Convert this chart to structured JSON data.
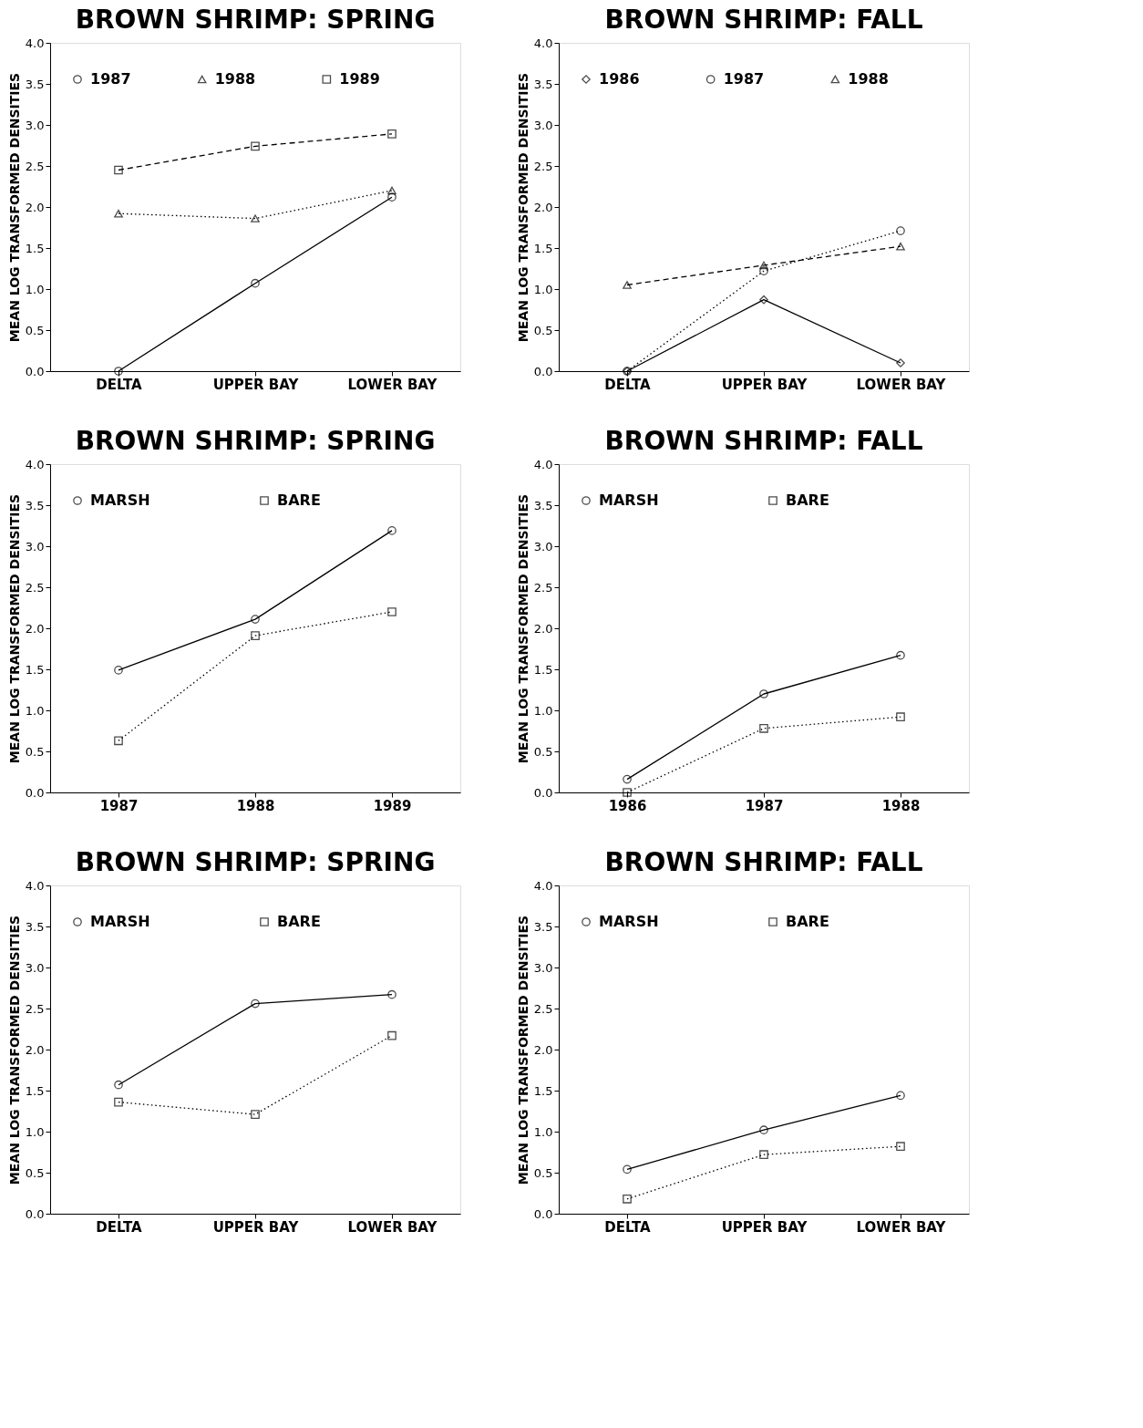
{
  "chart_data": [
    {
      "type": "line",
      "title": "BROWN SHRIMP:   SPRING",
      "ylabel": "MEAN LOG TRANSFORMED DENSITIES",
      "categories": [
        "DELTA",
        "UPPER BAY",
        "LOWER BAY"
      ],
      "ylim": [
        0,
        4
      ],
      "yticks": [
        {
          "value": 0,
          "label": "0.0"
        },
        {
          "value": 0.5,
          "label": "0.5"
        },
        {
          "value": 1,
          "label": "1.0"
        },
        {
          "value": 1.5,
          "label": "1.5"
        },
        {
          "value": 2,
          "label": "2.0"
        },
        {
          "value": 2.5,
          "label": "2.5"
        },
        {
          "value": 3,
          "label": "3.0"
        },
        {
          "value": 3.5,
          "label": "3.5"
        },
        {
          "value": 4,
          "label": "4.0"
        }
      ],
      "grid": false,
      "legend": "top left",
      "series": [
        {
          "name": "1987",
          "color": "#000000",
          "marker": "circle",
          "line_style": "solid",
          "values": [
            0.0,
            1.07,
            2.12
          ]
        },
        {
          "name": "1988",
          "color": "#000000",
          "marker": "triangle",
          "line_style": "dotted",
          "values": [
            1.92,
            1.86,
            2.2
          ]
        },
        {
          "name": "1989",
          "color": "#000000",
          "marker": "square",
          "line_style": "dashed",
          "values": [
            2.45,
            2.74,
            2.89
          ]
        }
      ]
    },
    {
      "type": "line",
      "title": "BROWN SHRIMP:   FALL",
      "ylabel": "MEAN LOG TRANSFORMED DENSITIES",
      "categories": [
        "DELTA",
        "UPPER BAY",
        "LOWER BAY"
      ],
      "ylim": [
        0,
        4
      ],
      "yticks": [
        {
          "value": 0,
          "label": "0.0"
        },
        {
          "value": 0.5,
          "label": "0.5"
        },
        {
          "value": 1,
          "label": "1.0"
        },
        {
          "value": 1.5,
          "label": "1.5"
        },
        {
          "value": 2,
          "label": "2.0"
        },
        {
          "value": 2.5,
          "label": "2.5"
        },
        {
          "value": 3,
          "label": "3.0"
        },
        {
          "value": 3.5,
          "label": "3.5"
        },
        {
          "value": 4,
          "label": "4.0"
        }
      ],
      "grid": false,
      "legend": "top left",
      "series": [
        {
          "name": "1986",
          "color": "#000000",
          "marker": "diamond",
          "line_style": "solid",
          "values": [
            0.0,
            0.87,
            0.1
          ]
        },
        {
          "name": "1987",
          "color": "#000000",
          "marker": "circle",
          "line_style": "dotted",
          "values": [
            0.0,
            1.22,
            1.71
          ]
        },
        {
          "name": "1988",
          "color": "#000000",
          "marker": "triangle",
          "line_style": "dashed",
          "values": [
            1.05,
            1.29,
            1.52
          ]
        }
      ]
    },
    {
      "type": "line",
      "title": "BROWN SHRIMP:   SPRING",
      "ylabel": "MEAN LOG TRANSFORMED DENSITIES",
      "categories": [
        "1987",
        "1988",
        "1989"
      ],
      "ylim": [
        0,
        4
      ],
      "yticks": [
        {
          "value": 0,
          "label": "0.0"
        },
        {
          "value": 0.5,
          "label": "0.5"
        },
        {
          "value": 1,
          "label": "1.0"
        },
        {
          "value": 1.5,
          "label": "1.5"
        },
        {
          "value": 2,
          "label": "2.0"
        },
        {
          "value": 2.5,
          "label": "2.5"
        },
        {
          "value": 3,
          "label": "3.0"
        },
        {
          "value": 3.5,
          "label": "3.5"
        },
        {
          "value": 4,
          "label": "4.0"
        }
      ],
      "grid": false,
      "legend": "top left",
      "series": [
        {
          "name": "MARSH",
          "color": "#000000",
          "marker": "circle",
          "line_style": "solid",
          "values": [
            1.49,
            2.11,
            3.19
          ]
        },
        {
          "name": "BARE",
          "color": "#000000",
          "marker": "square",
          "line_style": "dotted",
          "values": [
            0.63,
            1.91,
            2.2
          ]
        }
      ]
    },
    {
      "type": "line",
      "title": "BROWN SHRIMP:   FALL",
      "ylabel": "MEAN LOG TRANSFORMED DENSITIES",
      "categories": [
        "1986",
        "1987",
        "1988"
      ],
      "ylim": [
        0,
        4
      ],
      "yticks": [
        {
          "value": 0,
          "label": "0.0"
        },
        {
          "value": 0.5,
          "label": "0.5"
        },
        {
          "value": 1,
          "label": "1.0"
        },
        {
          "value": 1.5,
          "label": "1.5"
        },
        {
          "value": 2,
          "label": "2.0"
        },
        {
          "value": 2.5,
          "label": "2.5"
        },
        {
          "value": 3,
          "label": "3.0"
        },
        {
          "value": 3.5,
          "label": "3.5"
        },
        {
          "value": 4,
          "label": "4.0"
        }
      ],
      "grid": false,
      "legend": "top left",
      "series": [
        {
          "name": "MARSH",
          "color": "#000000",
          "marker": "circle",
          "line_style": "solid",
          "values": [
            0.16,
            1.2,
            1.67
          ]
        },
        {
          "name": "BARE",
          "color": "#000000",
          "marker": "square",
          "line_style": "dotted",
          "values": [
            0.0,
            0.78,
            0.92
          ]
        }
      ]
    },
    {
      "type": "line",
      "title": "BROWN SHRIMP:   SPRING",
      "ylabel": "MEAN LOG TRANSFORMED DENSITIES",
      "categories": [
        "DELTA",
        "UPPER BAY",
        "LOWER BAY"
      ],
      "ylim": [
        0,
        4
      ],
      "yticks": [
        {
          "value": 0,
          "label": "0.0"
        },
        {
          "value": 0.5,
          "label": "0.5"
        },
        {
          "value": 1,
          "label": "1.0"
        },
        {
          "value": 1.5,
          "label": "1.5"
        },
        {
          "value": 2,
          "label": "2.0"
        },
        {
          "value": 2.5,
          "label": "2.5"
        },
        {
          "value": 3,
          "label": "3.0"
        },
        {
          "value": 3.5,
          "label": "3.5"
        },
        {
          "value": 4,
          "label": "4.0"
        }
      ],
      "grid": false,
      "legend": "top left",
      "series": [
        {
          "name": "MARSH",
          "color": "#000000",
          "marker": "circle",
          "line_style": "solid",
          "values": [
            1.57,
            2.56,
            2.67
          ]
        },
        {
          "name": "BARE",
          "color": "#000000",
          "marker": "square",
          "line_style": "dotted",
          "values": [
            1.36,
            1.21,
            2.17
          ]
        }
      ]
    },
    {
      "type": "line",
      "title": "BROWN SHRIMP:   FALL",
      "ylabel": "MEAN LOG TRANSFORMED DENSITIES",
      "categories": [
        "DELTA",
        "UPPER BAY",
        "LOWER BAY"
      ],
      "ylim": [
        0,
        4
      ],
      "yticks": [
        {
          "value": 0,
          "label": "0.0"
        },
        {
          "value": 0.5,
          "label": "0.5"
        },
        {
          "value": 1,
          "label": "1.0"
        },
        {
          "value": 1.5,
          "label": "1.5"
        },
        {
          "value": 2,
          "label": "2.0"
        },
        {
          "value": 2.5,
          "label": "2.5"
        },
        {
          "value": 3,
          "label": "3.0"
        },
        {
          "value": 3.5,
          "label": "3.5"
        },
        {
          "value": 4,
          "label": "4.0"
        }
      ],
      "grid": false,
      "legend": "top left",
      "series": [
        {
          "name": "MARSH",
          "color": "#000000",
          "marker": "circle",
          "line_style": "solid",
          "values": [
            0.54,
            1.02,
            1.44
          ]
        },
        {
          "name": "BARE",
          "color": "#000000",
          "marker": "square",
          "line_style": "dotted",
          "values": [
            0.18,
            0.72,
            0.82
          ]
        }
      ]
    }
  ]
}
